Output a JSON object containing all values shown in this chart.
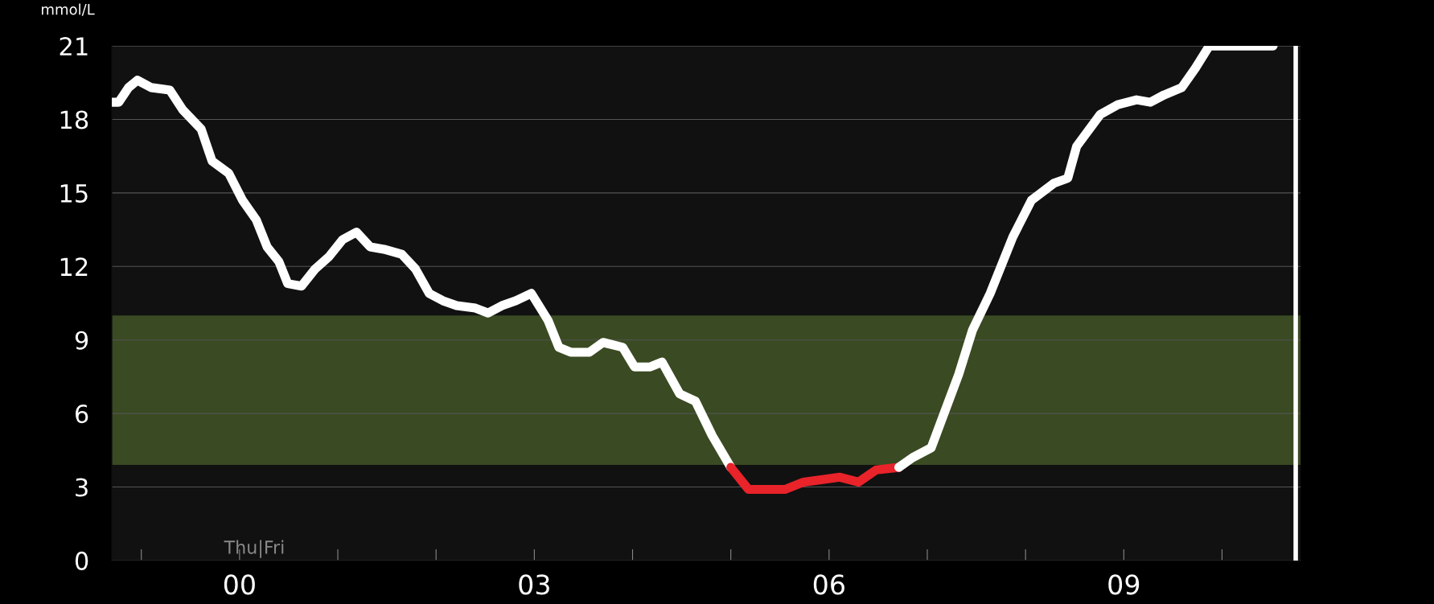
{
  "chart_data": {
    "type": "line",
    "ylabel": "mmol/L",
    "xlim": [
      -1.3,
      10.8
    ],
    "ylim": [
      0,
      21
    ],
    "xticks": [
      {
        "value": -1,
        "label": null
      },
      {
        "value": 0,
        "label": "00"
      },
      {
        "value": 1,
        "label": null
      },
      {
        "value": 2,
        "label": null
      },
      {
        "value": 3,
        "label": "03"
      },
      {
        "value": 4,
        "label": null
      },
      {
        "value": 5,
        "label": null
      },
      {
        "value": 6,
        "label": "06"
      },
      {
        "value": 7,
        "label": null
      },
      {
        "value": 8,
        "label": null
      },
      {
        "value": 9,
        "label": "09"
      },
      {
        "value": 10,
        "label": null
      }
    ],
    "yticks": [
      0,
      3,
      6,
      9,
      12,
      15,
      18,
      21
    ],
    "grid": "y",
    "line_style": "solid",
    "marker": "none",
    "series": [
      {
        "color": "#ffffff",
        "x": [
          -1.3,
          -1.23,
          -1.13,
          -1.04,
          -0.9,
          -0.71,
          -0.58,
          -0.39,
          -0.28,
          -0.11,
          0.03,
          0.17,
          0.28,
          0.4,
          0.49,
          0.63,
          0.77,
          0.91,
          1.05,
          1.19,
          1.33,
          1.47,
          1.65,
          1.79,
          1.93,
          2.07,
          2.21,
          2.4,
          2.53,
          2.67,
          2.81,
          2.97,
          3.14,
          3.25,
          3.37,
          3.56,
          3.7,
          3.9,
          4.02,
          4.18,
          4.3,
          4.48,
          4.64,
          4.81,
          5.0
        ],
        "values": [
          18.7,
          18.7,
          19.3,
          19.6,
          19.3,
          19.2,
          18.4,
          17.6,
          16.3,
          15.8,
          14.7,
          13.9,
          12.8,
          12.2,
          11.3,
          11.2,
          11.9,
          12.4,
          13.1,
          13.4,
          12.8,
          12.7,
          12.5,
          11.9,
          10.9,
          10.6,
          10.4,
          10.3,
          10.1,
          10.4,
          10.6,
          10.9,
          9.8,
          8.7,
          8.5,
          8.5,
          8.9,
          8.7,
          7.9,
          7.9,
          8.1,
          6.8,
          6.5,
          5.1,
          3.8
        ]
      },
      {
        "color": "#e8232a",
        "x": [
          5.0,
          5.18,
          5.37,
          5.55,
          5.74,
          5.92,
          6.11,
          6.3,
          6.48,
          6.71
        ],
        "values": [
          3.8,
          2.9,
          2.9,
          2.9,
          3.2,
          3.3,
          3.4,
          3.2,
          3.7,
          3.8
        ]
      },
      {
        "color": "#ffffff",
        "x": [
          6.71,
          6.85,
          7.04,
          7.18,
          7.32,
          7.46,
          7.64,
          7.87,
          8.06,
          8.29,
          8.43,
          8.52,
          8.76,
          8.94,
          9.13,
          9.27,
          9.41,
          9.59,
          9.73,
          9.87,
          10.52
        ],
        "values": [
          3.8,
          4.2,
          4.6,
          6.1,
          7.6,
          9.4,
          10.9,
          13.2,
          14.7,
          15.4,
          15.6,
          16.9,
          18.2,
          18.6,
          18.8,
          18.7,
          19.0,
          19.3,
          20.1,
          21.0,
          21.0
        ]
      }
    ],
    "bands": [
      {
        "axis": "y",
        "from": 3.9,
        "to": 10,
        "color": "#3a4a22"
      }
    ],
    "ref_lines": [
      {
        "axis": "x",
        "value": 10.75,
        "color": "#ffffff"
      }
    ],
    "annotations": [
      "Thu|Fri"
    ]
  }
}
